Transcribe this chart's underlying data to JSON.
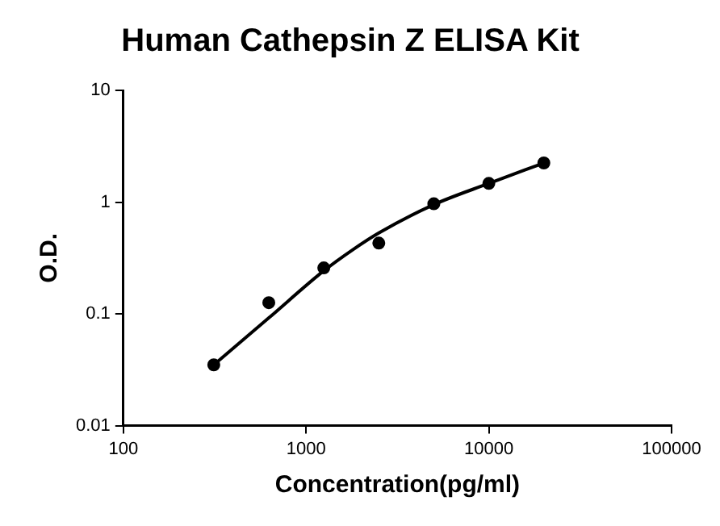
{
  "chart_data": {
    "type": "scatter",
    "title": "Human Cathepsin Z ELISA Kit",
    "xlabel": "Concentration(pg/ml)",
    "ylabel": "O.D.",
    "log": "xy",
    "xlim": [
      100,
      100000
    ],
    "xticks": [
      100,
      1000,
      10000,
      100000
    ],
    "ylim": [
      0.01,
      10
    ],
    "yticks": [
      0.01,
      0.1,
      1,
      10
    ],
    "grid": false,
    "legend": false,
    "series": [
      {
        "type": "scatter",
        "color": "#000000",
        "marker": "circle",
        "x": [
          312.5,
          625,
          1250,
          2500,
          5000,
          10000,
          20000
        ],
        "values": [
          0.035,
          0.126,
          0.258,
          0.43,
          0.966,
          1.47,
          2.24
        ]
      },
      {
        "type": "line",
        "color": "#000000",
        "marker": "none",
        "line_style": "solid",
        "x": [
          312.5,
          625,
          1250,
          1800,
          2500,
          5000,
          10000,
          20000
        ],
        "values": [
          0.035,
          0.092,
          0.243,
          0.375,
          0.53,
          0.95,
          1.47,
          2.24
        ]
      }
    ]
  }
}
